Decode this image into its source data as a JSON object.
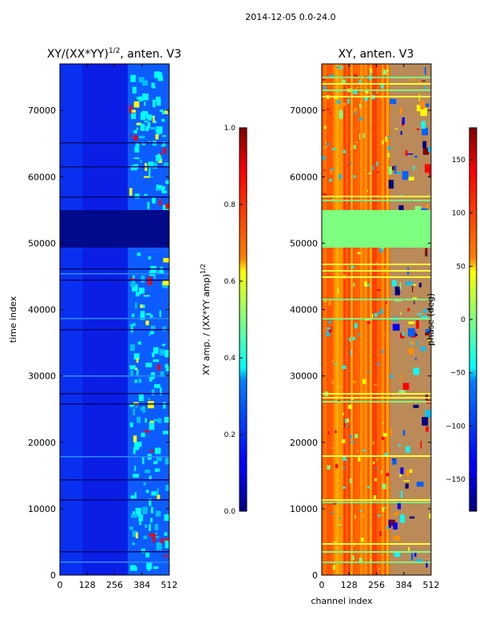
{
  "suptitle": "2014-12-05 0.0-24.0",
  "chart_data": [
    {
      "type": "heatmap",
      "title_main": "XY/(XX*YY)",
      "title_sup": "1/2",
      "title_rest": ", anten. V3",
      "xlabel": "",
      "ylabel": "time index",
      "xlim": [
        0,
        512
      ],
      "ylim": [
        0,
        77000
      ],
      "x_ticks": [
        "0",
        "128",
        "256",
        "384",
        "512"
      ],
      "x_tick_values": [
        0,
        128,
        256,
        384,
        512
      ],
      "y_ticks": [
        "0",
        "10000",
        "20000",
        "30000",
        "40000",
        "50000",
        "60000",
        "70000"
      ],
      "y_tick_values": [
        0,
        10000,
        20000,
        30000,
        40000,
        50000,
        60000,
        70000
      ],
      "colorbar": {
        "label_main": "XY amp. / (XX*YY amp)",
        "label_sup": "1/2",
        "range": [
          0.0,
          1.0
        ],
        "ticks": [
          "0.0",
          "0.2",
          "0.4",
          "0.6",
          "0.8",
          "1.0"
        ],
        "tick_values": [
          0.0,
          0.2,
          0.4,
          0.6,
          0.8,
          1.0
        ]
      }
    },
    {
      "type": "heatmap",
      "title_main": "XY, anten. V3",
      "xlabel": "channel index",
      "ylabel": "",
      "xlim": [
        0,
        512
      ],
      "ylim": [
        0,
        77000
      ],
      "x_ticks": [
        "0",
        "128",
        "256",
        "384",
        "512"
      ],
      "x_tick_values": [
        0,
        128,
        256,
        384,
        512
      ],
      "y_ticks": [
        "0",
        "10000",
        "20000",
        "30000",
        "40000",
        "50000",
        "60000",
        "70000"
      ],
      "y_tick_values": [
        0,
        10000,
        20000,
        30000,
        40000,
        50000,
        60000,
        70000
      ],
      "colorbar": {
        "label_main": "phase (deg)",
        "range": [
          -180,
          180
        ],
        "ticks": [
          "−150",
          "−100",
          "−50",
          "0",
          "50",
          "100",
          "150"
        ],
        "tick_values": [
          -150,
          -100,
          -50,
          0,
          50,
          100,
          150
        ]
      }
    }
  ],
  "colors": {
    "jet_low": "#00007f",
    "jet_blue": "#0000ff",
    "jet_cyan": "#00ffff",
    "jet_green": "#7fff7f",
    "jet_yellow": "#ffff00",
    "jet_red": "#ff0000",
    "jet_high": "#7f0000"
  }
}
